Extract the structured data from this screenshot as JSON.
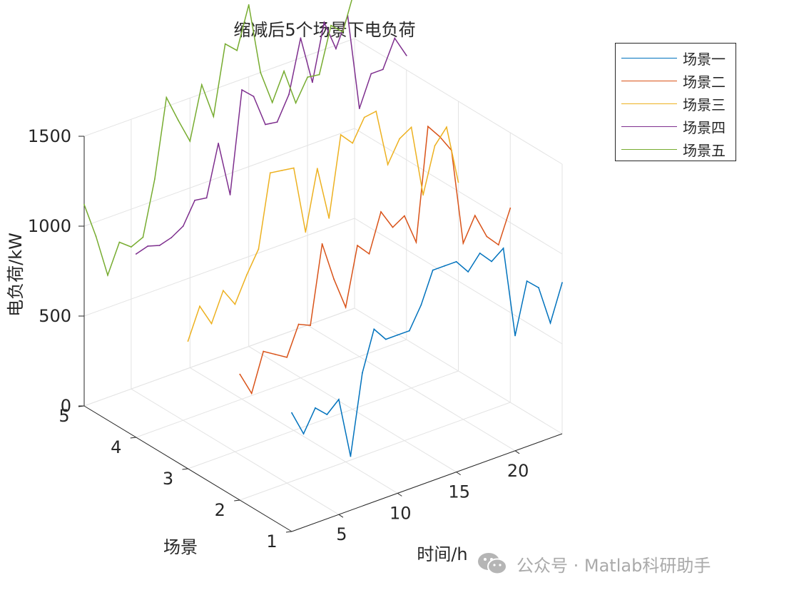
{
  "chart_data": {
    "type": "line",
    "subtype": "3d-line",
    "title": "缩减后5个场景下电负荷",
    "xlabel": "时间/h",
    "ylabel": "场景",
    "zlabel": "电负荷/kW",
    "x": [
      1,
      2,
      3,
      4,
      5,
      6,
      7,
      8,
      9,
      10,
      11,
      12,
      13,
      14,
      15,
      16,
      17,
      18,
      19,
      20,
      21,
      22,
      23,
      24
    ],
    "xticks": [
      "5",
      "10",
      "15",
      "20"
    ],
    "yticks": [
      "1",
      "2",
      "3",
      "4",
      "5"
    ],
    "zticks": [
      "0",
      "500",
      "1000",
      "1500"
    ],
    "xlim": [
      1,
      24
    ],
    "ylim": [
      1,
      5
    ],
    "zlim": [
      0,
      1500
    ],
    "grid": true,
    "legend_position": "top-right",
    "series": [
      {
        "name": "场景一",
        "color": "#0072BD",
        "y": 1,
        "values": [
          660,
          520,
          640,
          580,
          640,
          300,
          740,
          960,
          880,
          880,
          880,
          1000,
          1170,
          1170,
          1170,
          1090,
          1170,
          1100,
          1150,
          640,
          920,
          860,
          640,
          840
        ]
      },
      {
        "name": "场景二",
        "color": "#D95319",
        "y": 2,
        "values": [
          700,
          570,
          780,
          740,
          700,
          860,
          830,
          1260,
          1040,
          860,
          1180,
          1110,
          1320,
          1210,
          1250,
          1080,
          1700,
          1620,
          1520,
          980,
          1110,
          970,
          900,
          1080
        ]
      },
      {
        "name": "场景三",
        "color": "#EDB120",
        "y": 3,
        "values": [
          710,
          880,
          760,
          920,
          820,
          960,
          1080,
          1480,
          1470,
          1460,
          1080,
          1410,
          1110,
          1550,
          1480,
          1600,
          1610,
          1290,
          1410,
          1450,
          1050,
          1300,
          1380,
          1050
        ]
      },
      {
        "name": "场景四",
        "color": "#7E2F8E",
        "y": 4,
        "values": [
          1020,
          1040,
          1020,
          1040,
          1080,
          1200,
          1190,
          1470,
          1160,
          1720,
          1660,
          1480,
          1470,
          1600,
          1890,
          1620,
          1930,
          1760,
          1920,
          1380,
          1550,
          1550,
          1700,
          1580
        ]
      },
      {
        "name": "场景五",
        "color": "#77AC30",
        "y": 5,
        "values": [
          1120,
          920,
          680,
          840,
          790,
          820,
          1120,
          1550,
          1400,
          1260,
          1550,
          1350,
          1730,
          1670,
          1900,
          1500,
          1310,
          1460,
          1260,
          1380,
          1370,
          1620,
          1560,
          1770
        ]
      }
    ]
  },
  "watermark": {
    "text": "公众号 · Matlab科研助手",
    "icon": "wechat-icon"
  }
}
